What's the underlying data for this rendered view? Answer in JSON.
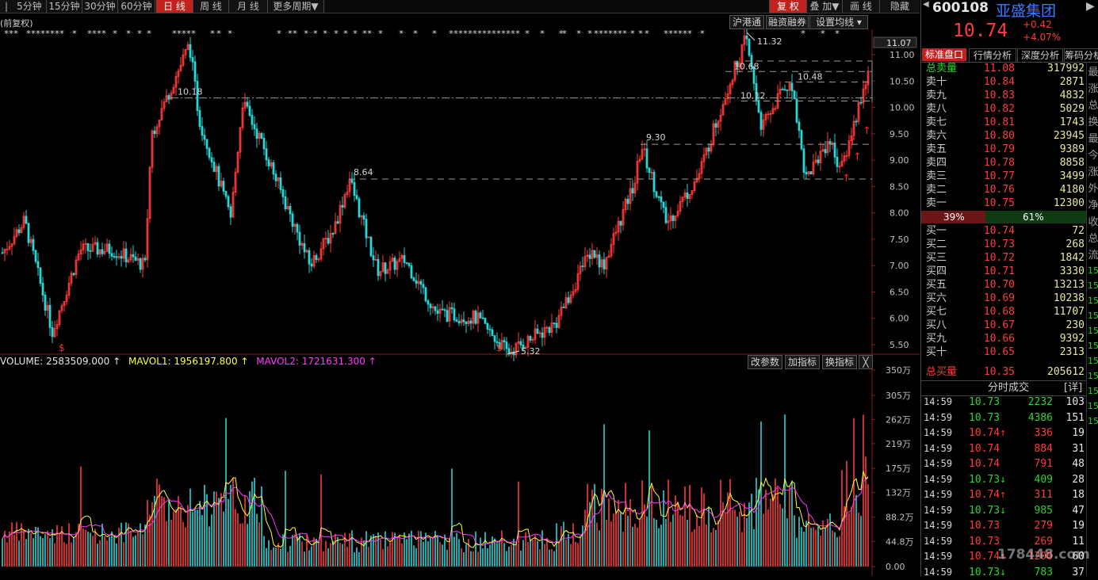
{
  "periods": [
    "5分钟",
    "15分钟",
    "30分钟",
    "60分钟",
    "日 线",
    "周 线",
    "月 线",
    "更多周期"
  ],
  "active_period": "日 线",
  "right_tabs": [
    "复 权",
    "叠 加",
    "画 线",
    "隐藏"
  ],
  "price_mode": "(前复权)",
  "overlay_buttons": [
    "沪港通",
    "融资融券",
    "设置均线"
  ],
  "price_axis": [
    "11.00",
    "10.50",
    "10.00",
    "9.50",
    "9.00",
    "8.50",
    "8.00",
    "7.50",
    "7.00",
    "6.50",
    "6.00",
    "5.50"
  ],
  "current_axis_label": "11.07",
  "annotations": {
    "high": "11.32",
    "low": "5.32",
    "l1018": "10.18",
    "l864": "8.64",
    "l930": "9.30",
    "l1068": "10.68",
    "l1048": "10.48",
    "l1012": "10.12"
  },
  "signal_glyph": "$",
  "arrow_glyph": "↑",
  "volume_legend": {
    "volume_label": "VOLUME: 2583509.000",
    "mavol1": "MAVOL1: 1956197.800",
    "mavol2": "MAVOL2: 1721631.300"
  },
  "indicator_buttons": [
    "改参数",
    "加指标",
    "换指标",
    "╳"
  ],
  "volume_axis": [
    "350万",
    "305万",
    "262万",
    "219万",
    "175万",
    "132万",
    "88.2万",
    "44.8万",
    "0.00"
  ],
  "colors": {
    "up": "#ff3b3b",
    "down": "#2ad6d6",
    "mavol1": "#ffff3a",
    "mavol2": "#ff3aff",
    "accent": "#c0231e"
  },
  "stock": {
    "code": "600108",
    "name": "亚盛集团",
    "price": "10.74",
    "change": "+0.42",
    "change_pct": "+4.07%"
  },
  "panel_tabs": [
    "标准盘口",
    "行情分析",
    "深度分析",
    "筹码分析"
  ],
  "total_sell": {
    "label": "总卖量",
    "price": "11.08",
    "volume": "317992"
  },
  "asks": [
    {
      "label": "卖十",
      "price": "10.84",
      "volume": "2871"
    },
    {
      "label": "卖九",
      "price": "10.83",
      "volume": "4832"
    },
    {
      "label": "卖八",
      "price": "10.82",
      "volume": "5029"
    },
    {
      "label": "卖七",
      "price": "10.81",
      "volume": "1743"
    },
    {
      "label": "卖六",
      "price": "10.80",
      "volume": "23945"
    },
    {
      "label": "卖五",
      "price": "10.79",
      "volume": "9389"
    },
    {
      "label": "卖四",
      "price": "10.78",
      "volume": "8858"
    },
    {
      "label": "卖三",
      "price": "10.77",
      "volume": "3499"
    },
    {
      "label": "卖二",
      "price": "10.76",
      "volume": "4180"
    },
    {
      "label": "卖一",
      "price": "10.75",
      "volume": "12300"
    }
  ],
  "ratio": {
    "sell_pct": "39%",
    "buy_pct": "61%",
    "sell_fraction": 0.39
  },
  "bids": [
    {
      "label": "买一",
      "price": "10.74",
      "volume": "72"
    },
    {
      "label": "买二",
      "price": "10.73",
      "volume": "268"
    },
    {
      "label": "买三",
      "price": "10.72",
      "volume": "1842"
    },
    {
      "label": "买四",
      "price": "10.71",
      "volume": "3330"
    },
    {
      "label": "买五",
      "price": "10.70",
      "volume": "13213"
    },
    {
      "label": "买六",
      "price": "10.69",
      "volume": "10238"
    },
    {
      "label": "买七",
      "price": "10.68",
      "volume": "11707"
    },
    {
      "label": "买八",
      "price": "10.67",
      "volume": "230"
    },
    {
      "label": "买九",
      "price": "10.66",
      "volume": "9392"
    },
    {
      "label": "买十",
      "price": "10.65",
      "volume": "2313"
    }
  ],
  "total_buy": {
    "label": "总买量",
    "price": "10.35",
    "volume": "205612"
  },
  "trades_title": "分时成交",
  "trades_detail": "[详]",
  "trades": [
    {
      "time": "14:59",
      "price": "10.73",
      "vol": "2232",
      "num": "103",
      "dir": "none",
      "color": "green"
    },
    {
      "time": "14:59",
      "price": "10.73",
      "vol": "4386",
      "num": "151",
      "dir": "none",
      "color": "green"
    },
    {
      "time": "14:59",
      "price": "10.74↑",
      "vol": "336",
      "num": "19",
      "dir": "up",
      "color": "red"
    },
    {
      "time": "14:59",
      "price": "10.74",
      "vol": "884",
      "num": "31",
      "dir": "none",
      "color": "red"
    },
    {
      "time": "14:59",
      "price": "10.74",
      "vol": "791",
      "num": "48",
      "dir": "none",
      "color": "red"
    },
    {
      "time": "14:59",
      "price": "10.73↓",
      "vol": "409",
      "num": "28",
      "dir": "down",
      "color": "green"
    },
    {
      "time": "14:59",
      "price": "10.74↑",
      "vol": "311",
      "num": "18",
      "dir": "up",
      "color": "red"
    },
    {
      "time": "14:59",
      "price": "10.73↓",
      "vol": "985",
      "num": "47",
      "dir": "down",
      "color": "green"
    },
    {
      "time": "14:59",
      "price": "10.73",
      "vol": "279",
      "num": "19",
      "dir": "none",
      "color": "red"
    },
    {
      "time": "14:59",
      "price": "10.73",
      "vol": "269",
      "num": "11",
      "dir": "none",
      "color": "red"
    },
    {
      "time": "14:59",
      "price": "10.74↑",
      "vol": "1200",
      "num": "60",
      "dir": "up",
      "color": "red"
    },
    {
      "time": "14:59",
      "price": "10.73↓",
      "vol": "783",
      "num": "37",
      "dir": "down",
      "color": "green"
    }
  ],
  "side_chars": [
    "最",
    "涨",
    "总",
    "换",
    "最",
    "今",
    "涨",
    "外",
    "净",
    "收",
    "总",
    "流"
  ],
  "side_codes": [
    "15",
    "15",
    "15",
    "15",
    "15",
    "15",
    "15",
    "15",
    "15",
    "15",
    "15"
  ],
  "watermark": "178448.com"
}
